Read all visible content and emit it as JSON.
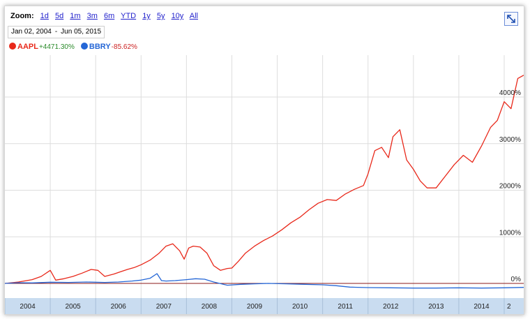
{
  "toolbar": {
    "zoom_label": "Zoom:",
    "zoom_options": [
      "1d",
      "5d",
      "1m",
      "3m",
      "6m",
      "YTD",
      "1y",
      "5y",
      "10y",
      "All"
    ],
    "start_date": "Jan 02, 2004",
    "separator": "-",
    "end_date": "Jun 05, 2015"
  },
  "legend": [
    {
      "symbol": "AAPL",
      "change": "+4471.30%",
      "dot_color": "#e8281a",
      "change_color": "#2a8a2a"
    },
    {
      "symbol": "BBRY",
      "change": "-85.62%",
      "dot_color": "#2466d6",
      "change_color": "#cc2222"
    }
  ],
  "chart_data": {
    "type": "line",
    "xlabel": "",
    "ylabel": "",
    "x_ticks": [
      "2004",
      "2005",
      "2006",
      "2007",
      "2008",
      "2009",
      "2010",
      "2011",
      "2012",
      "2013",
      "2014",
      "2"
    ],
    "y_ticks": [
      "0%",
      "1000%",
      "2000%",
      "3000%",
      "4000%"
    ],
    "y_tick_values": [
      0,
      1000,
      2000,
      3000,
      4000
    ],
    "ylim": [
      -300,
      4900
    ],
    "xlim": [
      2004.0,
      2015.43
    ],
    "grid": true,
    "baseline": 0,
    "colors": {
      "AAPL": "#e8281a",
      "BBRY": "#2466d6",
      "grid": "#dddddd",
      "axis_band": "#c9dcf0",
      "baseline": "#8b1a1a"
    },
    "series": [
      {
        "name": "AAPL",
        "x": [
          2004.0,
          2004.3,
          2004.6,
          2004.8,
          2005.0,
          2005.12,
          2005.3,
          2005.5,
          2005.7,
          2005.9,
          2006.05,
          2006.2,
          2006.4,
          2006.55,
          2006.7,
          2006.85,
          2007.0,
          2007.2,
          2007.4,
          2007.55,
          2007.7,
          2007.85,
          2007.95,
          2008.05,
          2008.15,
          2008.3,
          2008.45,
          2008.6,
          2008.75,
          2008.9,
          2009.0,
          2009.15,
          2009.3,
          2009.5,
          2009.7,
          2009.9,
          2010.1,
          2010.3,
          2010.5,
          2010.7,
          2010.9,
          2011.1,
          2011.3,
          2011.5,
          2011.7,
          2011.9,
          2012.0,
          2012.15,
          2012.3,
          2012.45,
          2012.55,
          2012.7,
          2012.85,
          2013.0,
          2013.15,
          2013.3,
          2013.5,
          2013.7,
          2013.9,
          2014.1,
          2014.3,
          2014.5,
          2014.7,
          2014.85,
          2015.0,
          2015.15,
          2015.3,
          2015.43
        ],
        "values": [
          0,
          30,
          80,
          150,
          280,
          70,
          100,
          150,
          220,
          300,
          280,
          150,
          200,
          250,
          300,
          340,
          400,
          500,
          650,
          800,
          850,
          700,
          520,
          760,
          800,
          780,
          650,
          380,
          280,
          320,
          330,
          480,
          650,
          800,
          920,
          1020,
          1150,
          1300,
          1420,
          1580,
          1720,
          1800,
          1780,
          1920,
          2020,
          2100,
          2350,
          2850,
          2920,
          2700,
          3150,
          3300,
          2650,
          2450,
          2200,
          2050,
          2050,
          2300,
          2550,
          2750,
          2600,
          2950,
          3350,
          3500,
          3900,
          3750,
          4400,
          4470
        ]
      },
      {
        "name": "BBRY",
        "x": [
          2004.0,
          2004.3,
          2004.6,
          2005.0,
          2005.4,
          2005.8,
          2006.2,
          2006.5,
          2006.8,
          2007.0,
          2007.2,
          2007.35,
          2007.45,
          2007.55,
          2007.75,
          2008.0,
          2008.2,
          2008.4,
          2008.6,
          2008.9,
          2009.2,
          2009.5,
          2009.8,
          2010.2,
          2010.6,
          2011.0,
          2011.3,
          2011.6,
          2012.0,
          2012.5,
          2013.0,
          2013.5,
          2014.0,
          2014.5,
          2015.0,
          2015.43
        ],
        "values": [
          0,
          15,
          10,
          25,
          20,
          30,
          20,
          30,
          50,
          70,
          110,
          210,
          60,
          50,
          60,
          80,
          100,
          90,
          30,
          -40,
          -20,
          -10,
          0,
          -10,
          -20,
          -30,
          -50,
          -80,
          -90,
          -95,
          -100,
          -100,
          -95,
          -100,
          -95,
          -86
        ]
      }
    ]
  }
}
